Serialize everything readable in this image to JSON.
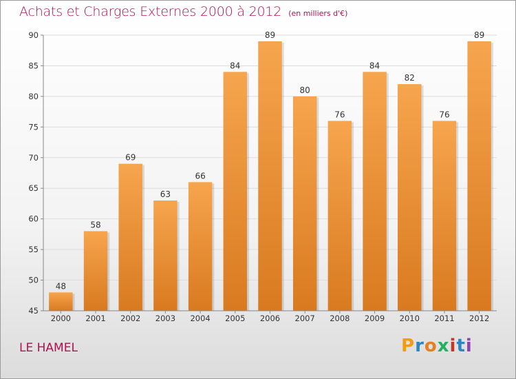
{
  "header": {
    "title": "Achats et Charges Externes 2000 à 2012",
    "unit": "(en milliers d'€)"
  },
  "place": "LE HAMEL",
  "logo": {
    "text": "Proxiti",
    "letters": [
      {
        "ch": "P",
        "color": "#f39c12"
      },
      {
        "ch": "r",
        "color": "#2e86c1"
      },
      {
        "ch": "o",
        "color": "#e67e22"
      },
      {
        "ch": "x",
        "color": "#27ae60"
      },
      {
        "ch": "i",
        "color": "#c0392b"
      },
      {
        "ch": "t",
        "color": "#2e86c1"
      },
      {
        "ch": "i",
        "color": "#8e44ad"
      }
    ]
  },
  "colors": {
    "bar_top": "#f6a54e",
    "bar_bottom": "#d97a20",
    "title": "#b0124f",
    "grid": "#dddddd"
  },
  "chart_data": {
    "type": "bar",
    "title": "Achats et Charges Externes 2000 à 2012",
    "subtitle": "(en milliers d'€)",
    "categories": [
      "2000",
      "2001",
      "2002",
      "2003",
      "2004",
      "2005",
      "2006",
      "2007",
      "2008",
      "2009",
      "2010",
      "2011",
      "2012"
    ],
    "values": [
      48,
      58,
      69,
      63,
      66,
      84,
      89,
      80,
      76,
      84,
      82,
      76,
      89
    ],
    "ylim": [
      45,
      90
    ],
    "yticks": [
      45,
      50,
      55,
      60,
      65,
      70,
      75,
      80,
      85,
      90
    ],
    "grid": true,
    "xlabel": "",
    "ylabel": ""
  }
}
